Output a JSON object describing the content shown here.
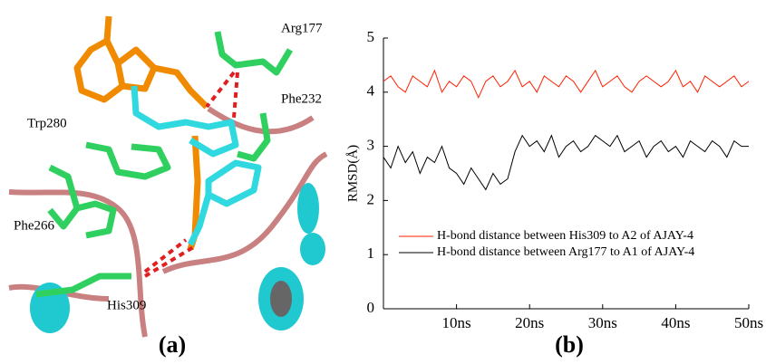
{
  "panel_a": {
    "label": "(a)",
    "residues": [
      "Arg177",
      "Phe232",
      "Trp280",
      "Phe266",
      "His309"
    ]
  },
  "panel_b_label": "(b)",
  "chart_data": {
    "type": "line",
    "y_label": "RMSD(Å)",
    "x": [
      0,
      1,
      2,
      3,
      4,
      5,
      6,
      7,
      8,
      9,
      10,
      11,
      12,
      13,
      14,
      15,
      16,
      17,
      18,
      19,
      20,
      21,
      22,
      23,
      24,
      25,
      26,
      27,
      28,
      29,
      30,
      31,
      32,
      33,
      34,
      35,
      36,
      37,
      38,
      39,
      40,
      41,
      42,
      43,
      44,
      45,
      46,
      47,
      48,
      49,
      50
    ],
    "series": [
      {
        "name": "H-bond distance between His309 to A2 of AJAY-4",
        "color": "#ff2000",
        "values": [
          4.2,
          4.3,
          4.1,
          4.0,
          4.3,
          4.2,
          4.1,
          4.4,
          4.0,
          4.2,
          4.1,
          4.3,
          4.2,
          3.9,
          4.2,
          4.3,
          4.1,
          4.2,
          4.4,
          4.1,
          4.2,
          4.0,
          4.3,
          4.2,
          4.1,
          4.3,
          4.2,
          4.0,
          4.2,
          4.4,
          4.1,
          4.2,
          4.3,
          4.1,
          4.0,
          4.2,
          4.3,
          4.2,
          4.1,
          4.2,
          4.4,
          4.1,
          4.2,
          4.0,
          4.3,
          4.2,
          4.1,
          4.2,
          4.3,
          4.1,
          4.2
        ]
      },
      {
        "name": "H-bond distance between Arg177 to A1 of AJAY-4",
        "color": "#000000",
        "values": [
          2.8,
          2.6,
          3.0,
          2.7,
          2.9,
          2.5,
          2.8,
          2.7,
          3.0,
          2.6,
          2.5,
          2.3,
          2.6,
          2.4,
          2.2,
          2.5,
          2.3,
          2.4,
          2.9,
          3.2,
          3.0,
          3.1,
          2.9,
          3.2,
          2.8,
          3.0,
          3.1,
          2.9,
          3.0,
          3.2,
          3.1,
          3.0,
          3.2,
          2.9,
          3.0,
          3.1,
          2.8,
          3.0,
          3.1,
          2.9,
          3.0,
          2.8,
          3.1,
          3.0,
          2.9,
          3.1,
          3.0,
          2.8,
          3.1,
          3.0,
          3.0
        ]
      }
    ],
    "xlim": [
      0,
      50
    ],
    "xticks": [
      {
        "value": 10,
        "label": "10ns"
      },
      {
        "value": 20,
        "label": "20ns"
      },
      {
        "value": 30,
        "label": "30ns"
      },
      {
        "value": 40,
        "label": "40ns"
      },
      {
        "value": 50,
        "label": "50ns"
      }
    ],
    "ylim": [
      0,
      5
    ],
    "yticks": [
      0,
      1,
      2,
      3,
      4,
      5
    ],
    "legend": "lower-left"
  }
}
